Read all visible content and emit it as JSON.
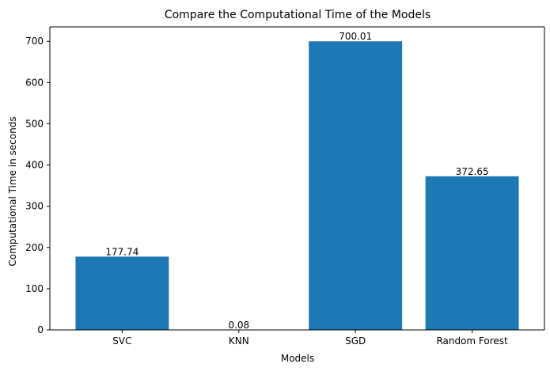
{
  "chart_data": {
    "type": "bar",
    "title": "Compare the Computational Time of the Models",
    "xlabel": "Models",
    "ylabel": "Computational Time in seconds",
    "categories": [
      "SVC",
      "KNN",
      "SGD",
      "Random Forest"
    ],
    "values": [
      177.74,
      0.08,
      700.01,
      372.65
    ],
    "value_labels": [
      "177.74",
      "0.08",
      "700.01",
      "372.65"
    ],
    "ylim": [
      0,
      735
    ],
    "yticks": [
      0,
      100,
      200,
      300,
      400,
      500,
      600,
      700
    ],
    "ytick_labels": [
      "0",
      "100",
      "200",
      "300",
      "400",
      "500",
      "600",
      "700"
    ],
    "bar_color": "#1f77b4",
    "grid": false,
    "legend": "none"
  }
}
